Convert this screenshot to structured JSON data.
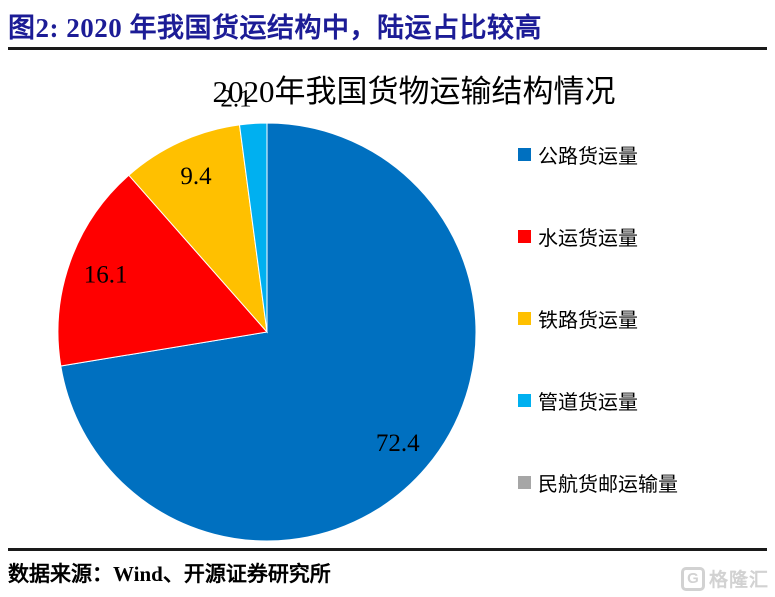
{
  "header": {
    "title": "图2:  2020 年我国货运结构中，陆运占比较高",
    "title_color": "#1c1c96"
  },
  "chart_data": {
    "type": "pie",
    "title": "2020年我国货物运输结构情况",
    "start_angle_deg": 0,
    "direction": "clockwise",
    "legend_position": "right",
    "slices": [
      {
        "label": "公路货运量",
        "value": 72.4,
        "color": "#0070C0",
        "data_label": "72.4"
      },
      {
        "label": "水运货运量",
        "value": 16.1,
        "color": "#FF0000",
        "data_label": "16.1"
      },
      {
        "label": "铁路货运量",
        "value": 9.4,
        "color": "#FFC000",
        "data_label": "9.4"
      },
      {
        "label": "管道货运量",
        "value": 2.1,
        "color": "#00B0F0",
        "data_label": "2.1"
      },
      {
        "label": "民航货邮运输量",
        "value": 0.0,
        "color": "#A6A6A6",
        "data_label": ""
      }
    ]
  },
  "footer": {
    "source": "数据来源：Wind、开源证券研究所",
    "watermark_icon": "G",
    "watermark_text": "格隆汇"
  }
}
